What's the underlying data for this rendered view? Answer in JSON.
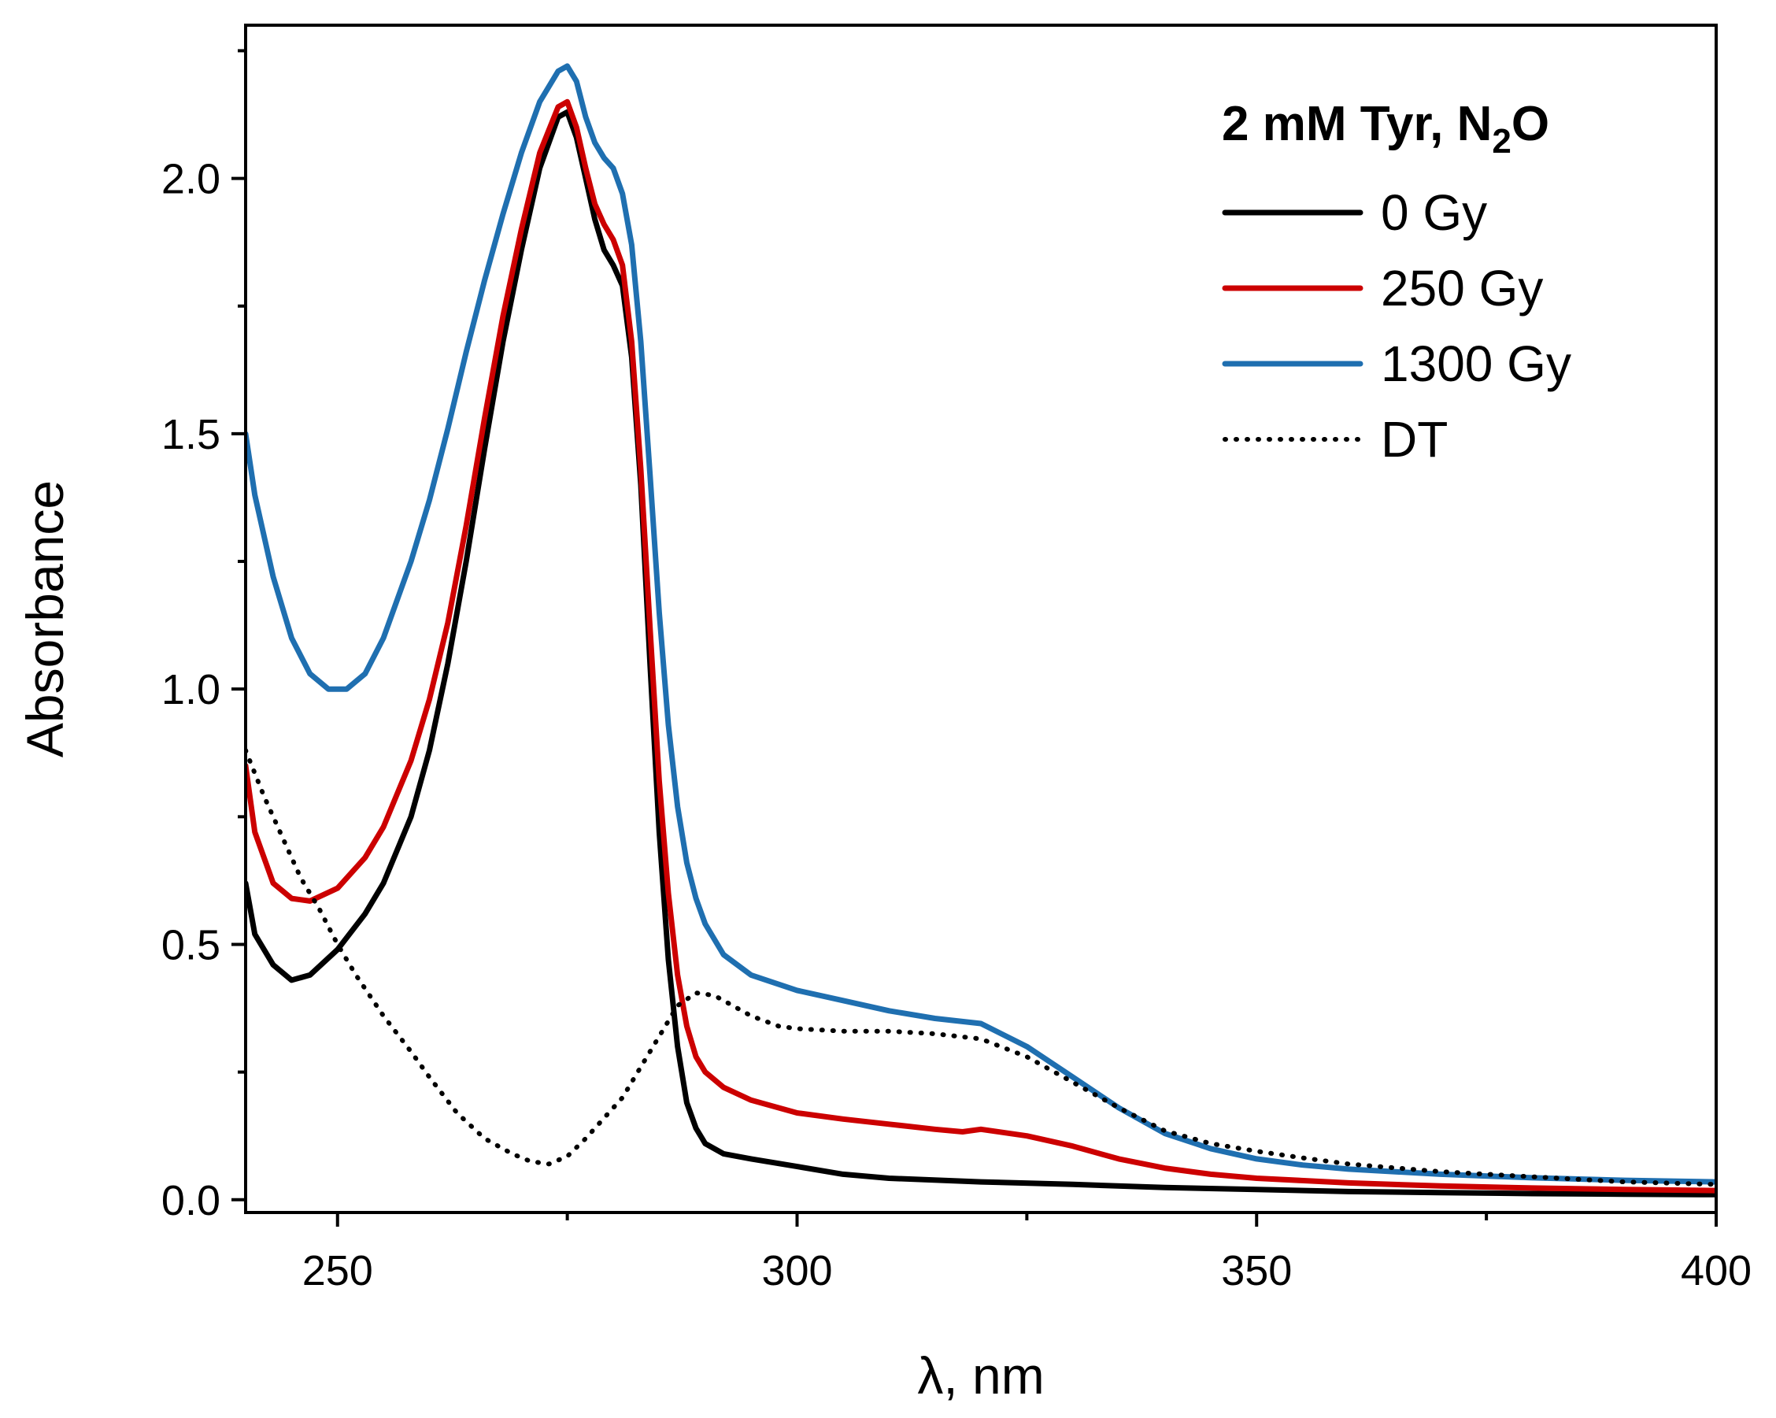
{
  "chart_data": {
    "type": "line",
    "title": "",
    "xlabel": "λ, nm",
    "ylabel": "Absorbance",
    "xlim": [
      240,
      400
    ],
    "ylim": [
      -0.025,
      2.3
    ],
    "x_ticks": [
      250,
      300,
      350,
      400
    ],
    "x_tick_labels": [
      "250",
      "300",
      "350",
      "400"
    ],
    "x_minor_ticks": [
      275,
      325,
      375
    ],
    "y_ticks": [
      0.0,
      0.5,
      1.0,
      1.5,
      2.0
    ],
    "y_tick_labels": [
      "0.0",
      "0.5",
      "1.0",
      "1.5",
      "2.0"
    ],
    "y_minor_ticks": [
      0.25,
      0.75,
      1.25,
      1.75,
      2.25
    ],
    "grid": false,
    "legend": {
      "position": "top-right",
      "title_main": "2 mM Tyr, N",
      "title_sub": "2",
      "title_end": "O"
    },
    "series": [
      {
        "name": "0 Gy",
        "color": "#000000",
        "style": "solid",
        "points": [
          [
            240,
            0.62
          ],
          [
            241,
            0.52
          ],
          [
            243,
            0.46
          ],
          [
            245,
            0.43
          ],
          [
            247,
            0.44
          ],
          [
            250,
            0.49
          ],
          [
            253,
            0.56
          ],
          [
            255,
            0.62
          ],
          [
            258,
            0.75
          ],
          [
            260,
            0.88
          ],
          [
            262,
            1.05
          ],
          [
            264,
            1.25
          ],
          [
            266,
            1.47
          ],
          [
            268,
            1.68
          ],
          [
            270,
            1.86
          ],
          [
            272,
            2.02
          ],
          [
            274,
            2.12
          ],
          [
            275,
            2.13
          ],
          [
            276,
            2.08
          ],
          [
            277,
            2.0
          ],
          [
            278,
            1.92
          ],
          [
            279,
            1.86
          ],
          [
            280,
            1.83
          ],
          [
            281,
            1.79
          ],
          [
            282,
            1.65
          ],
          [
            283,
            1.4
          ],
          [
            284,
            1.05
          ],
          [
            285,
            0.72
          ],
          [
            286,
            0.47
          ],
          [
            287,
            0.3
          ],
          [
            288,
            0.19
          ],
          [
            289,
            0.14
          ],
          [
            290,
            0.11
          ],
          [
            292,
            0.09
          ],
          [
            295,
            0.08
          ],
          [
            300,
            0.065
          ],
          [
            305,
            0.05
          ],
          [
            310,
            0.042
          ],
          [
            320,
            0.035
          ],
          [
            330,
            0.03
          ],
          [
            340,
            0.024
          ],
          [
            350,
            0.02
          ],
          [
            360,
            0.016
          ],
          [
            370,
            0.014
          ],
          [
            380,
            0.012
          ],
          [
            390,
            0.011
          ],
          [
            400,
            0.01
          ]
        ]
      },
      {
        "name": "250 Gy",
        "color": "#cc0000",
        "style": "solid",
        "points": [
          [
            240,
            0.85
          ],
          [
            241,
            0.72
          ],
          [
            243,
            0.62
          ],
          [
            245,
            0.59
          ],
          [
            247,
            0.585
          ],
          [
            250,
            0.61
          ],
          [
            253,
            0.67
          ],
          [
            255,
            0.73
          ],
          [
            258,
            0.86
          ],
          [
            260,
            0.98
          ],
          [
            262,
            1.13
          ],
          [
            264,
            1.32
          ],
          [
            266,
            1.53
          ],
          [
            268,
            1.73
          ],
          [
            270,
            1.9
          ],
          [
            272,
            2.05
          ],
          [
            274,
            2.14
          ],
          [
            275,
            2.15
          ],
          [
            276,
            2.1
          ],
          [
            277,
            2.02
          ],
          [
            278,
            1.95
          ],
          [
            279,
            1.91
          ],
          [
            280,
            1.88
          ],
          [
            281,
            1.83
          ],
          [
            282,
            1.68
          ],
          [
            283,
            1.43
          ],
          [
            284,
            1.12
          ],
          [
            285,
            0.82
          ],
          [
            286,
            0.6
          ],
          [
            287,
            0.44
          ],
          [
            288,
            0.34
          ],
          [
            289,
            0.28
          ],
          [
            290,
            0.25
          ],
          [
            292,
            0.22
          ],
          [
            295,
            0.195
          ],
          [
            300,
            0.17
          ],
          [
            305,
            0.158
          ],
          [
            310,
            0.148
          ],
          [
            315,
            0.138
          ],
          [
            318,
            0.133
          ],
          [
            320,
            0.138
          ],
          [
            325,
            0.125
          ],
          [
            330,
            0.105
          ],
          [
            335,
            0.08
          ],
          [
            340,
            0.062
          ],
          [
            345,
            0.05
          ],
          [
            350,
            0.042
          ],
          [
            360,
            0.033
          ],
          [
            370,
            0.027
          ],
          [
            380,
            0.023
          ],
          [
            390,
            0.02
          ],
          [
            400,
            0.018
          ]
        ]
      },
      {
        "name": "1300 Gy",
        "color": "#1f6fb0",
        "style": "solid",
        "points": [
          [
            240,
            1.5
          ],
          [
            241,
            1.38
          ],
          [
            243,
            1.22
          ],
          [
            245,
            1.1
          ],
          [
            247,
            1.03
          ],
          [
            249,
            1.0
          ],
          [
            251,
            1.0
          ],
          [
            253,
            1.03
          ],
          [
            255,
            1.1
          ],
          [
            258,
            1.25
          ],
          [
            260,
            1.37
          ],
          [
            262,
            1.51
          ],
          [
            264,
            1.66
          ],
          [
            266,
            1.8
          ],
          [
            268,
            1.93
          ],
          [
            270,
            2.05
          ],
          [
            272,
            2.15
          ],
          [
            274,
            2.21
          ],
          [
            275,
            2.22
          ],
          [
            276,
            2.19
          ],
          [
            277,
            2.12
          ],
          [
            278,
            2.07
          ],
          [
            279,
            2.04
          ],
          [
            280,
            2.02
          ],
          [
            281,
            1.97
          ],
          [
            282,
            1.87
          ],
          [
            283,
            1.68
          ],
          [
            284,
            1.42
          ],
          [
            285,
            1.15
          ],
          [
            286,
            0.93
          ],
          [
            287,
            0.77
          ],
          [
            288,
            0.66
          ],
          [
            289,
            0.59
          ],
          [
            290,
            0.54
          ],
          [
            292,
            0.48
          ],
          [
            295,
            0.44
          ],
          [
            300,
            0.41
          ],
          [
            305,
            0.39
          ],
          [
            310,
            0.37
          ],
          [
            315,
            0.355
          ],
          [
            320,
            0.345
          ],
          [
            325,
            0.3
          ],
          [
            330,
            0.24
          ],
          [
            335,
            0.18
          ],
          [
            340,
            0.13
          ],
          [
            345,
            0.1
          ],
          [
            350,
            0.08
          ],
          [
            355,
            0.068
          ],
          [
            360,
            0.06
          ],
          [
            370,
            0.05
          ],
          [
            380,
            0.043
          ],
          [
            390,
            0.038
          ],
          [
            400,
            0.035
          ]
        ]
      },
      {
        "name": "DT",
        "color": "#000000",
        "style": "dotted",
        "points": [
          [
            240,
            0.88
          ],
          [
            242,
            0.79
          ],
          [
            244,
            0.71
          ],
          [
            246,
            0.63
          ],
          [
            248,
            0.57
          ],
          [
            250,
            0.5
          ],
          [
            252,
            0.44
          ],
          [
            255,
            0.36
          ],
          [
            258,
            0.29
          ],
          [
            260,
            0.24
          ],
          [
            263,
            0.17
          ],
          [
            266,
            0.12
          ],
          [
            269,
            0.09
          ],
          [
            271,
            0.075
          ],
          [
            273,
            0.07
          ],
          [
            275,
            0.085
          ],
          [
            277,
            0.12
          ],
          [
            279,
            0.16
          ],
          [
            281,
            0.2
          ],
          [
            283,
            0.26
          ],
          [
            285,
            0.32
          ],
          [
            287,
            0.38
          ],
          [
            289,
            0.405
          ],
          [
            291,
            0.4
          ],
          [
            293,
            0.38
          ],
          [
            295,
            0.36
          ],
          [
            298,
            0.34
          ],
          [
            300,
            0.335
          ],
          [
            305,
            0.33
          ],
          [
            310,
            0.33
          ],
          [
            315,
            0.325
          ],
          [
            320,
            0.315
          ],
          [
            325,
            0.28
          ],
          [
            330,
            0.23
          ],
          [
            335,
            0.18
          ],
          [
            340,
            0.135
          ],
          [
            345,
            0.11
          ],
          [
            350,
            0.095
          ],
          [
            355,
            0.082
          ],
          [
            360,
            0.07
          ],
          [
            370,
            0.055
          ],
          [
            380,
            0.045
          ],
          [
            390,
            0.035
          ],
          [
            400,
            0.03
          ]
        ]
      }
    ]
  }
}
